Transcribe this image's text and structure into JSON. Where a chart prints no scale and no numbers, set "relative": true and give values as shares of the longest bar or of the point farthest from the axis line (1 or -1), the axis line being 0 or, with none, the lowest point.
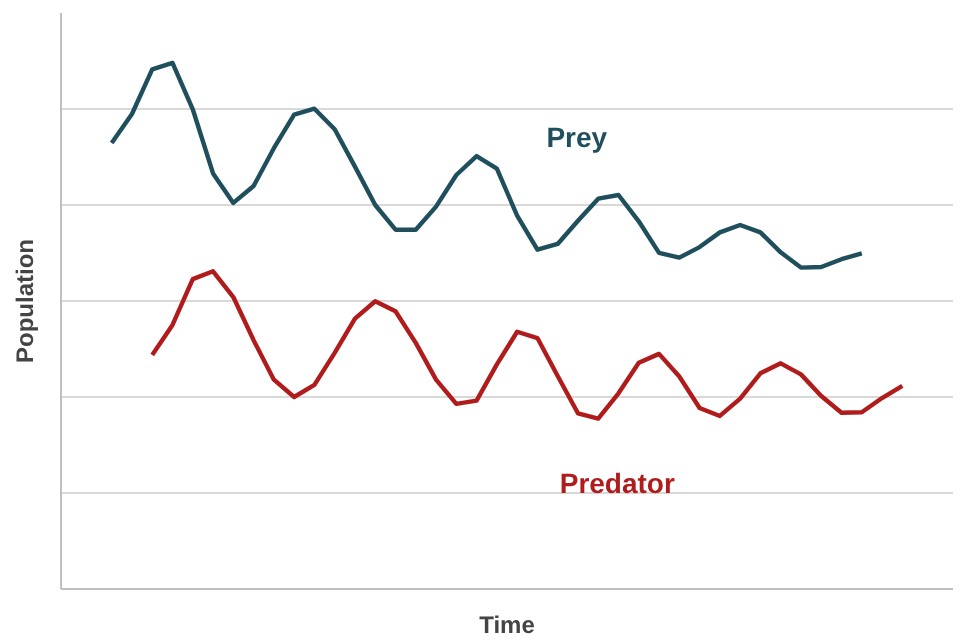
{
  "chart_data": {
    "type": "line",
    "relative": true,
    "xlabel": "Time",
    "ylabel": "Population",
    "grid": "y",
    "marker": "none",
    "line_style": "solid",
    "categories": [
      null,
      null,
      null,
      null,
      null,
      null,
      null,
      null,
      null,
      null,
      null,
      null,
      null,
      null,
      null,
      null,
      null,
      null,
      null,
      null,
      null,
      null,
      null,
      null,
      null,
      null,
      null,
      null,
      null,
      null,
      null,
      null,
      null,
      null,
      null,
      null,
      null,
      null,
      null,
      null,
      null,
      null,
      null,
      null
    ],
    "series": [
      {
        "name": "Prey",
        "color": "#1f4e5c",
        "values": [
          null,
          null,
          0.848,
          0.903,
          0.988,
          1,
          0.912,
          0.79,
          0.734,
          0.766,
          0.838,
          0.902,
          0.913,
          0.874,
          0.803,
          0.73,
          0.683,
          0.683,
          0.727,
          0.787,
          0.823,
          0.799,
          0.71,
          0.645,
          0.656,
          0.7,
          0.742,
          0.749,
          0.699,
          0.639,
          0.63,
          0.65,
          0.678,
          0.692,
          0.678,
          0.64,
          0.611,
          0.612,
          0.627,
          0.638,
          null,
          null,
          null,
          null
        ]
      },
      {
        "name": "Predator",
        "color": "#b01c1c",
        "values": [
          null,
          null,
          null,
          null,
          0.445,
          0.502,
          0.589,
          0.604,
          0.555,
          0.473,
          0.398,
          0.365,
          0.388,
          0.449,
          0.514,
          0.547,
          0.528,
          0.468,
          0.398,
          0.352,
          0.358,
          0.427,
          0.489,
          0.477,
          0.405,
          0.334,
          0.324,
          0.372,
          0.43,
          0.447,
          0.404,
          0.344,
          0.329,
          0.362,
          0.41,
          0.429,
          0.408,
          0.367,
          0.335,
          0.336,
          0.363,
          0.386,
          null,
          null
        ]
      }
    ]
  }
}
